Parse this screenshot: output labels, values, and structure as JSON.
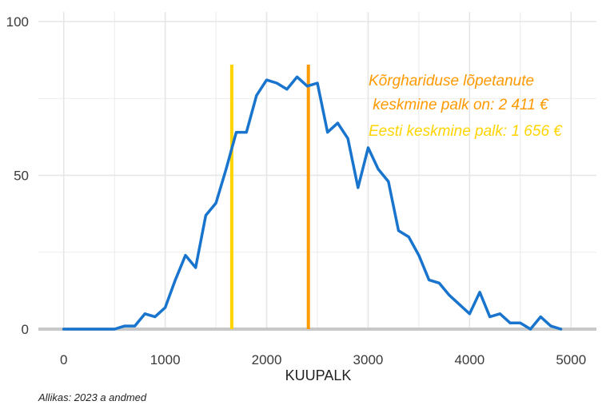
{
  "chart_data": {
    "type": "line",
    "title": "",
    "xlabel": "KUUPALK",
    "ylabel": "",
    "xlim": [
      -250,
      5250
    ],
    "ylim": [
      0,
      100
    ],
    "x_ticks": [
      0,
      1000,
      2000,
      3000,
      4000,
      5000
    ],
    "x_tick_labels": [
      "0",
      "1000",
      "2000",
      "3000",
      "4000",
      "5000"
    ],
    "y_ticks": [
      0,
      50,
      100
    ],
    "y_tick_labels": [
      "0",
      "50",
      "100"
    ],
    "grid": true,
    "series": [
      {
        "color": "#1874CD",
        "x": [
          0,
          100,
          200,
          300,
          400,
          500,
          600,
          700,
          800,
          900,
          1000,
          1100,
          1200,
          1300,
          1400,
          1500,
          1600,
          1700,
          1800,
          1900,
          2000,
          2100,
          2200,
          2300,
          2400,
          2500,
          2600,
          2700,
          2800,
          2900,
          3000,
          3100,
          3200,
          3300,
          3400,
          3500,
          3600,
          3700,
          3800,
          3900,
          4000,
          4100,
          4200,
          4300,
          4400,
          4500,
          4600,
          4700,
          4800,
          4900
        ],
        "y": [
          0,
          0,
          0,
          0,
          0,
          0,
          1,
          1,
          5,
          4,
          7,
          16,
          24,
          20,
          37,
          41,
          52,
          64,
          64,
          76,
          81,
          80,
          78,
          82,
          79,
          80,
          64,
          67,
          62,
          46,
          59,
          52,
          48,
          32,
          30,
          24,
          16,
          15,
          11,
          8,
          5,
          12,
          4,
          5,
          2,
          2,
          0,
          4,
          1,
          0
        ]
      }
    ],
    "vlines": [
      {
        "x": 1656,
        "color": "#FFD400",
        "y_top": 86
      },
      {
        "x": 2411,
        "color": "#FF9900",
        "y_top": 86
      }
    ],
    "annotations": [
      {
        "lines": [
          "Kõrghariduse lõpetanute",
          " keskmine palk on: 2 411 €"
        ],
        "color": "#FF9900"
      },
      {
        "lines": [
          "Eesti keskmine palk: 1 656 €"
        ],
        "color": "#FFD400"
      }
    ],
    "caption": "Allikas: 2023 a andmed"
  },
  "colors": {
    "grid": "#e6e6e6",
    "baseline": "#c8c8c8"
  }
}
